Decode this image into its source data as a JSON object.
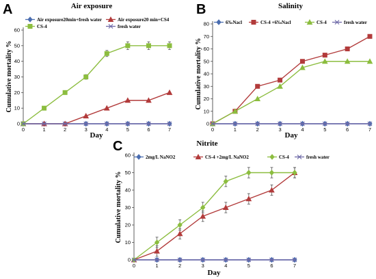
{
  "chart_data": [
    {
      "id": "A",
      "type": "line",
      "panel_label": "A",
      "title": "Air exposure",
      "xlabel": "Day",
      "ylabel": "Cumulative mortality %",
      "xlim": [
        0,
        7
      ],
      "ylim": [
        0,
        60
      ],
      "xticks": [
        0,
        1,
        2,
        3,
        4,
        5,
        6,
        7
      ],
      "yticks": [
        0,
        10,
        20,
        30,
        40,
        50,
        60
      ],
      "x": [
        0,
        1,
        2,
        3,
        4,
        5,
        6,
        7
      ],
      "grid": false,
      "legend_position": "top",
      "series": [
        {
          "name": "Air exposure20min+fresh water",
          "color": "#4a6db0",
          "marker": "diamond",
          "values": [
            0,
            0,
            0,
            0,
            0,
            0,
            0,
            0
          ],
          "errors": null
        },
        {
          "name": "Air exposure20 min+CS4",
          "color": "#b23b3b",
          "marker": "triangle",
          "values": [
            0,
            0,
            0,
            5,
            10,
            15,
            15,
            20
          ],
          "errors": null
        },
        {
          "name": "CS-4",
          "color": "#8cbd3f",
          "marker": "square",
          "values": [
            0,
            10,
            20,
            30,
            45,
            50,
            50,
            50
          ],
          "errors": [
            0,
            0,
            1,
            1.5,
            2,
            2.5,
            2.5,
            2.5
          ]
        },
        {
          "name": "fresh water",
          "color": "#6e6aa8",
          "marker": "cross",
          "values": [
            0,
            0,
            0,
            0,
            0,
            0,
            0,
            0
          ],
          "errors": null
        }
      ]
    },
    {
      "id": "B",
      "type": "line",
      "panel_label": "B",
      "title": "Salinity",
      "xlabel": "Day",
      "ylabel": "Cumulative mortality %",
      "xlim": [
        0,
        7
      ],
      "ylim": [
        0,
        80
      ],
      "xticks": [
        0,
        1,
        2,
        3,
        4,
        5,
        6,
        7
      ],
      "yticks": [
        0,
        10,
        20,
        30,
        40,
        50,
        60,
        70,
        80
      ],
      "x": [
        0,
        1,
        2,
        3,
        4,
        5,
        6,
        7
      ],
      "grid": false,
      "legend_position": "top",
      "series": [
        {
          "name": "6‰Nacl",
          "color": "#4a6db0",
          "marker": "diamond",
          "values": [
            0,
            0,
            0,
            0,
            0,
            0,
            0,
            0
          ],
          "errors": null
        },
        {
          "name": "CS-4 +6‰Nacl",
          "color": "#b23b3b",
          "marker": "square",
          "values": [
            0,
            10,
            30,
            35,
            50,
            55,
            60,
            70
          ],
          "errors": null
        },
        {
          "name": "CS-4",
          "color": "#8cbd3f",
          "marker": "triangle",
          "values": [
            0,
            10,
            20,
            30,
            45,
            50,
            50,
            50
          ],
          "errors": null
        },
        {
          "name": "fresh water",
          "color": "#6e6aa8",
          "marker": "cross",
          "values": [
            0,
            0,
            0,
            0,
            0,
            0,
            0,
            0
          ],
          "errors": null
        }
      ]
    },
    {
      "id": "C",
      "type": "line",
      "panel_label": "C",
      "title": "Nitrite",
      "xlabel": "Day",
      "ylabel": "Cumulative mortality %",
      "xlim": [
        0,
        7
      ],
      "ylim": [
        0,
        60
      ],
      "xticks": [
        0,
        1,
        2,
        3,
        4,
        5,
        6,
        7
      ],
      "yticks": [
        0,
        10,
        20,
        30,
        40,
        50,
        60
      ],
      "x": [
        0,
        1,
        2,
        3,
        4,
        5,
        6,
        7
      ],
      "grid": false,
      "legend_position": "top",
      "series": [
        {
          "name": "2mg/L NaNO2",
          "color": "#4a6db0",
          "marker": "diamond",
          "values": [
            0,
            0,
            0,
            0,
            0,
            0,
            0,
            0
          ],
          "errors": null
        },
        {
          "name": "CS-4 +2mg/L NaNO2",
          "color": "#b23b3b",
          "marker": "triangle",
          "values": [
            0,
            5,
            15,
            25,
            30,
            35,
            40,
            50
          ],
          "errors": [
            0,
            3,
            3,
            3,
            3,
            3,
            3,
            3
          ]
        },
        {
          "name": "CS-4",
          "color": "#8cbd3f",
          "marker": "diamond",
          "values": [
            0,
            10,
            20,
            30,
            45,
            50,
            50,
            50
          ],
          "errors": [
            0,
            3,
            3,
            3,
            3,
            3,
            3,
            3
          ]
        },
        {
          "name": "fresh water",
          "color": "#6e6aa8",
          "marker": "cross",
          "values": [
            0,
            0,
            0,
            0,
            0,
            0,
            0,
            0
          ],
          "errors": null
        }
      ]
    }
  ]
}
